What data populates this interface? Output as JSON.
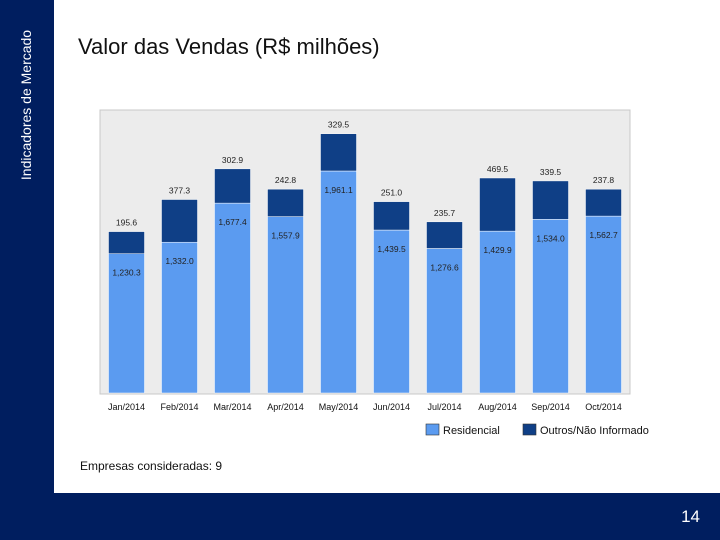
{
  "side_label": "Indicadores de Mercado",
  "title": "Valor das Vendas (R$ milhões)",
  "note": "Empresas consideradas: 9",
  "page_number": "14",
  "colors": {
    "navy": "#001e5f",
    "residencial": "#5b9bf0",
    "outros": "#0f3f86"
  },
  "chart_data": {
    "type": "bar",
    "stacked": true,
    "categories": [
      "Jan/2014",
      "Feb/2014",
      "Mar/2014",
      "Apr/2014",
      "May/2014",
      "Jun/2014",
      "Jul/2014",
      "Aug/2014",
      "Sep/2014",
      "Oct/2014"
    ],
    "series": [
      {
        "name": "Residencial",
        "values": [
          1230.3,
          1332.0,
          1677.4,
          1557.9,
          1961.1,
          1439.5,
          1276.6,
          1429.9,
          1534.0,
          1562.7
        ],
        "labels": [
          "1,230.3",
          "1,332.0",
          "1,677.4",
          "1,557.9",
          "1,961.1",
          "1,439.5",
          "1,276.6",
          "1,429.9",
          "1,534.0",
          "1,562.7"
        ]
      },
      {
        "name": "Outros/Não Informado",
        "values": [
          195.6,
          377.3,
          302.9,
          242.8,
          329.5,
          251.0,
          235.7,
          469.5,
          339.5,
          237.8
        ],
        "labels": [
          "195.6",
          "377.3",
          "302.9",
          "242.8",
          "329.5",
          "251.0",
          "235.7",
          "469.5",
          "339.5",
          "237.8"
        ]
      }
    ],
    "ylim": [
      0,
      2500
    ],
    "legend_position": "bottom-right"
  }
}
